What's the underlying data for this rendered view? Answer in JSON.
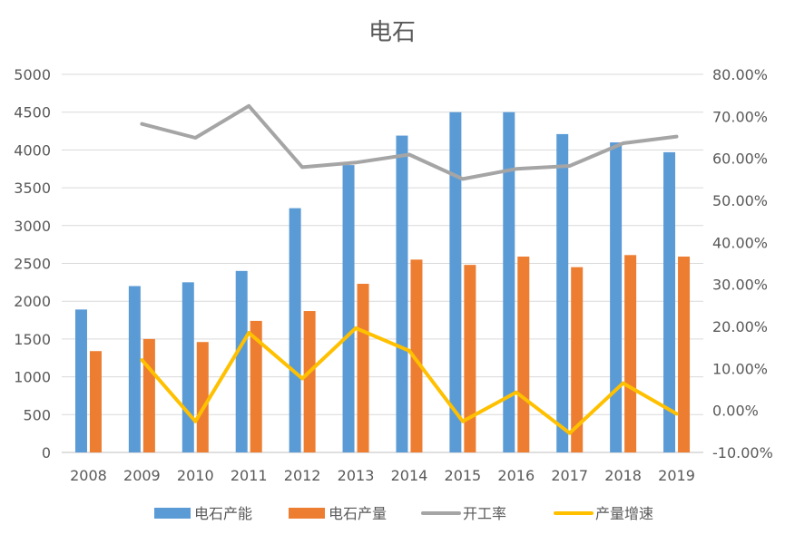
{
  "chart_data": {
    "type": "bar",
    "title": "电石",
    "categories": [
      "2008",
      "2009",
      "2010",
      "2011",
      "2012",
      "2013",
      "2014",
      "2015",
      "2016",
      "2017",
      "2018",
      "2019"
    ],
    "series": [
      {
        "name": "电石产能",
        "kind": "bar",
        "axis": "left",
        "color": "#5B9BD5",
        "values": [
          1890,
          2200,
          2250,
          2400,
          3230,
          3800,
          4190,
          4500,
          4500,
          4210,
          4100,
          3970
        ]
      },
      {
        "name": "电石产量",
        "kind": "bar",
        "axis": "left",
        "color": "#ED7D31",
        "values": [
          1340,
          1500,
          1460,
          1740,
          1870,
          2230,
          2550,
          2480,
          2590,
          2450,
          2610,
          2590
        ]
      },
      {
        "name": "开工率",
        "kind": "line",
        "axis": "right",
        "color": "#A5A5A5",
        "values": [
          null,
          68.2,
          64.9,
          72.5,
          57.9,
          59.0,
          60.9,
          55.1,
          57.5,
          58.2,
          63.6,
          65.2
        ]
      },
      {
        "name": "产量增速",
        "kind": "line",
        "axis": "right",
        "color": "#FFC000",
        "values": [
          null,
          12.0,
          -2.6,
          18.5,
          7.6,
          19.6,
          14.2,
          -2.6,
          4.3,
          -5.4,
          6.5,
          -0.8
        ]
      }
    ],
    "ylim_left": [
      0,
      5000
    ],
    "yticks_left": [
      "0",
      "500",
      "1000",
      "1500",
      "2000",
      "2500",
      "3000",
      "3500",
      "4000",
      "4500",
      "5000"
    ],
    "ylim_right": [
      -10,
      80
    ],
    "yticks_right": [
      "-10.00%",
      "0.00%",
      "10.00%",
      "20.00%",
      "30.00%",
      "40.00%",
      "50.00%",
      "60.00%",
      "70.00%",
      "80.00%"
    ],
    "grid": true,
    "legend_position": "bottom",
    "gridline_color": "#D9D9D9",
    "text_color": "#595959"
  }
}
